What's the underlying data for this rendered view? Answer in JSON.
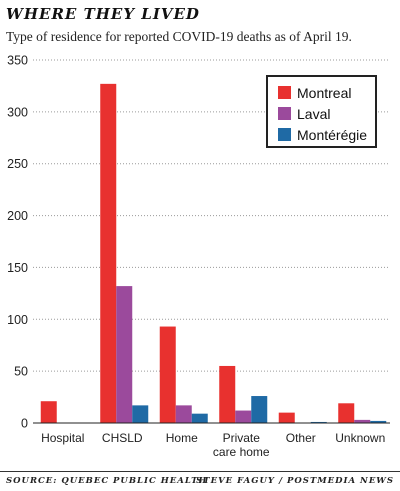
{
  "header": {
    "title": "WHERE THEY LIVED",
    "subtitle": "Type of residence for reported COVID-19 deaths as of April 19."
  },
  "colors": {
    "montreal": "#e8312f",
    "laval": "#9b4a9c",
    "monteregie": "#1f6aa5"
  },
  "chart_data": {
    "type": "bar",
    "categories": [
      "Hospital",
      "CHSLD",
      "Home",
      "Private care home",
      "Other",
      "Unknown"
    ],
    "category_lines": [
      [
        "Hospital"
      ],
      [
        "CHSLD"
      ],
      [
        "Home"
      ],
      [
        "Private",
        "care home"
      ],
      [
        "Other"
      ],
      [
        "Unknown"
      ]
    ],
    "series": [
      {
        "name": "Montreal",
        "values": [
          21,
          327,
          93,
          55,
          10,
          19
        ]
      },
      {
        "name": "Laval",
        "values": [
          0,
          132,
          17,
          12,
          0,
          3
        ]
      },
      {
        "name": "Montérégie",
        "values": [
          0,
          17,
          9,
          26,
          1,
          2
        ]
      }
    ],
    "ylim": [
      0,
      350
    ],
    "yticks": [
      0,
      50,
      100,
      150,
      200,
      250,
      300,
      350
    ],
    "grid": "horizontal dotted",
    "legend_position": "top-right"
  },
  "footer": {
    "source": "SOURCE: QUEBEC PUBLIC HEALTH",
    "credit": "STEVE FAGUY / POSTMEDIA NEWS"
  }
}
